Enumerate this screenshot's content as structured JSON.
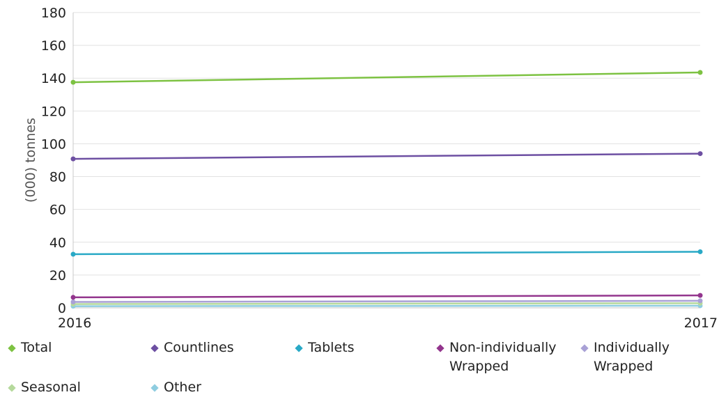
{
  "chart_data": {
    "type": "line",
    "title": "",
    "xlabel": "",
    "ylabel": "(000) tonnes",
    "x": [
      "2016",
      "2017"
    ],
    "ylim": [
      0,
      180
    ],
    "yticks": [
      0,
      20,
      40,
      60,
      80,
      100,
      120,
      140,
      160,
      180
    ],
    "grid": true,
    "legend": "bottom",
    "series": [
      {
        "name": "Total",
        "values": [
          137.5,
          143.5
        ],
        "color": "#7dc242"
      },
      {
        "name": "Countlines",
        "values": [
          90.8,
          94.0
        ],
        "color": "#6d4fa2"
      },
      {
        "name": "Tablets",
        "values": [
          32.7,
          34.2
        ],
        "color": "#29a9c6"
      },
      {
        "name": "Non-individually Wrapped",
        "values": [
          6.4,
          7.6
        ],
        "color": "#93358d"
      },
      {
        "name": "Individually Wrapped",
        "values": [
          3.6,
          4.3
        ],
        "color": "#a9a1d6"
      },
      {
        "name": "Seasonal",
        "values": [
          2.3,
          2.8
        ],
        "color": "#b5d99c"
      },
      {
        "name": "Other",
        "values": [
          1.0,
          1.3
        ],
        "color": "#8fcde0"
      }
    ]
  }
}
